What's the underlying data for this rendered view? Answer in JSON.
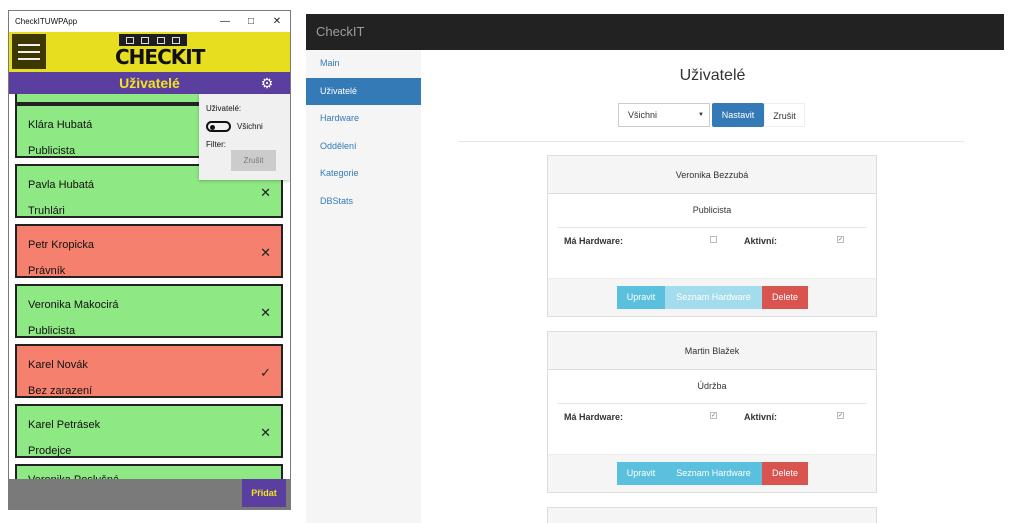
{
  "uwp": {
    "window_title": "CheckITUWPApp",
    "logo_text": "CHECKIT",
    "page_title": "Uživatelé",
    "filter": {
      "users_label": "Uživatelé:",
      "toggle_label": "Všichni",
      "filter_label": "Filter:",
      "clear_button": "Zrušit"
    },
    "items": [
      {
        "name": "Klára Hubatá",
        "position": "Publicista",
        "color": "green",
        "mark": ""
      },
      {
        "name": "Pavla Hubatá",
        "position": "Truhlári",
        "color": "green",
        "mark": "✕"
      },
      {
        "name": "Petr Kropicka",
        "position": "Právník",
        "color": "red",
        "mark": "✕"
      },
      {
        "name": "Veronika Makocirá",
        "position": "Publicista",
        "color": "green",
        "mark": "✕"
      },
      {
        "name": "Karel Novák",
        "position": "Bez zarazení",
        "color": "red",
        "mark": "✓"
      },
      {
        "name": "Karel Petrásek",
        "position": "Prodejce",
        "color": "green",
        "mark": "✕"
      },
      {
        "name": "Veronika Poslušná",
        "position": "",
        "color": "green",
        "mark": ""
      }
    ],
    "add_button": "Přidat",
    "colors": {
      "header": "#e6de1f",
      "pagebar": "#5b3fa0",
      "title_text": "#f5e21f",
      "green": "#8ee883",
      "red": "#f5806e"
    }
  },
  "web": {
    "brand": "CheckIT",
    "nav": [
      {
        "label": "Main",
        "active": false
      },
      {
        "label": "Uživatelé",
        "active": true
      },
      {
        "label": "Hardware",
        "active": false
      },
      {
        "label": "Oddělení",
        "active": false
      },
      {
        "label": "Kategorie",
        "active": false
      },
      {
        "label": "DBStats",
        "active": false
      }
    ],
    "heading": "Uživatelé",
    "select_value": "Všichni",
    "set_button": "Nastavit",
    "cancel_button": "Zrušit",
    "cards": [
      {
        "name": "Veronika Bezzubá",
        "role": "Publicista",
        "has_hardware_label": "Má Hardware:",
        "has_hardware": false,
        "active_label": "Aktivní:",
        "active": true,
        "edit": "Upravit",
        "hw_list": "Seznam Hardware",
        "delete": "Delete"
      },
      {
        "name": "Martin Blažek",
        "role": "Údržba",
        "has_hardware_label": "Má Hardware:",
        "has_hardware": true,
        "active_label": "Aktivní:",
        "active": true,
        "edit": "Upravit",
        "hw_list": "Seznam Hardware",
        "delete": "Delete"
      }
    ],
    "colors": {
      "navbar": "#222222",
      "primary": "#337ab7",
      "info": "#5bc0de",
      "danger": "#d9534f"
    }
  }
}
